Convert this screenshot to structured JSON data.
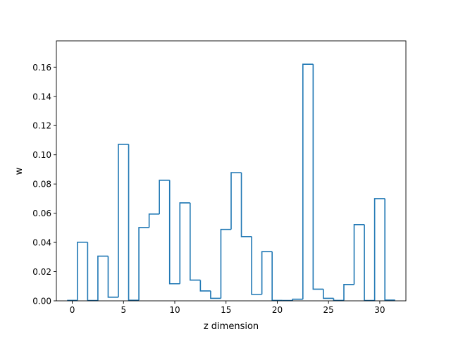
{
  "chart_data": {
    "type": "line",
    "style": "step",
    "xlabel": "z dimension",
    "ylabel": "w",
    "xlim": [
      -1.55,
      32.55
    ],
    "ylim": [
      0,
      0.178
    ],
    "xticks": [
      0,
      5,
      10,
      15,
      20,
      25,
      30
    ],
    "yticks": [
      0.0,
      0.02,
      0.04,
      0.06,
      0.08,
      0.1,
      0.12,
      0.14,
      0.16
    ],
    "ytick_labels": [
      "0.00",
      "0.02",
      "0.04",
      "0.06",
      "0.08",
      "0.10",
      "0.12",
      "0.14",
      "0.16"
    ],
    "grid": false,
    "legend": "none",
    "color": "#1f77b4",
    "x": [
      0,
      1,
      2,
      3,
      4,
      5,
      6,
      7,
      8,
      9,
      10,
      11,
      12,
      13,
      14,
      15,
      16,
      17,
      18,
      19,
      20,
      21,
      22,
      23,
      24,
      25,
      26,
      27,
      28,
      29,
      30,
      31
    ],
    "values": [
      0.0003,
      0.0401,
      0.0002,
      0.0306,
      0.0025,
      0.1072,
      0.0004,
      0.0502,
      0.0594,
      0.0826,
      0.0117,
      0.0671,
      0.0142,
      0.0068,
      0.0017,
      0.0489,
      0.0878,
      0.044,
      0.0044,
      0.0337,
      0.0003,
      0.0002,
      0.0011,
      0.162,
      0.008,
      0.0017,
      0.0003,
      0.0112,
      0.0522,
      0.0002,
      0.07,
      0.0005
    ]
  }
}
